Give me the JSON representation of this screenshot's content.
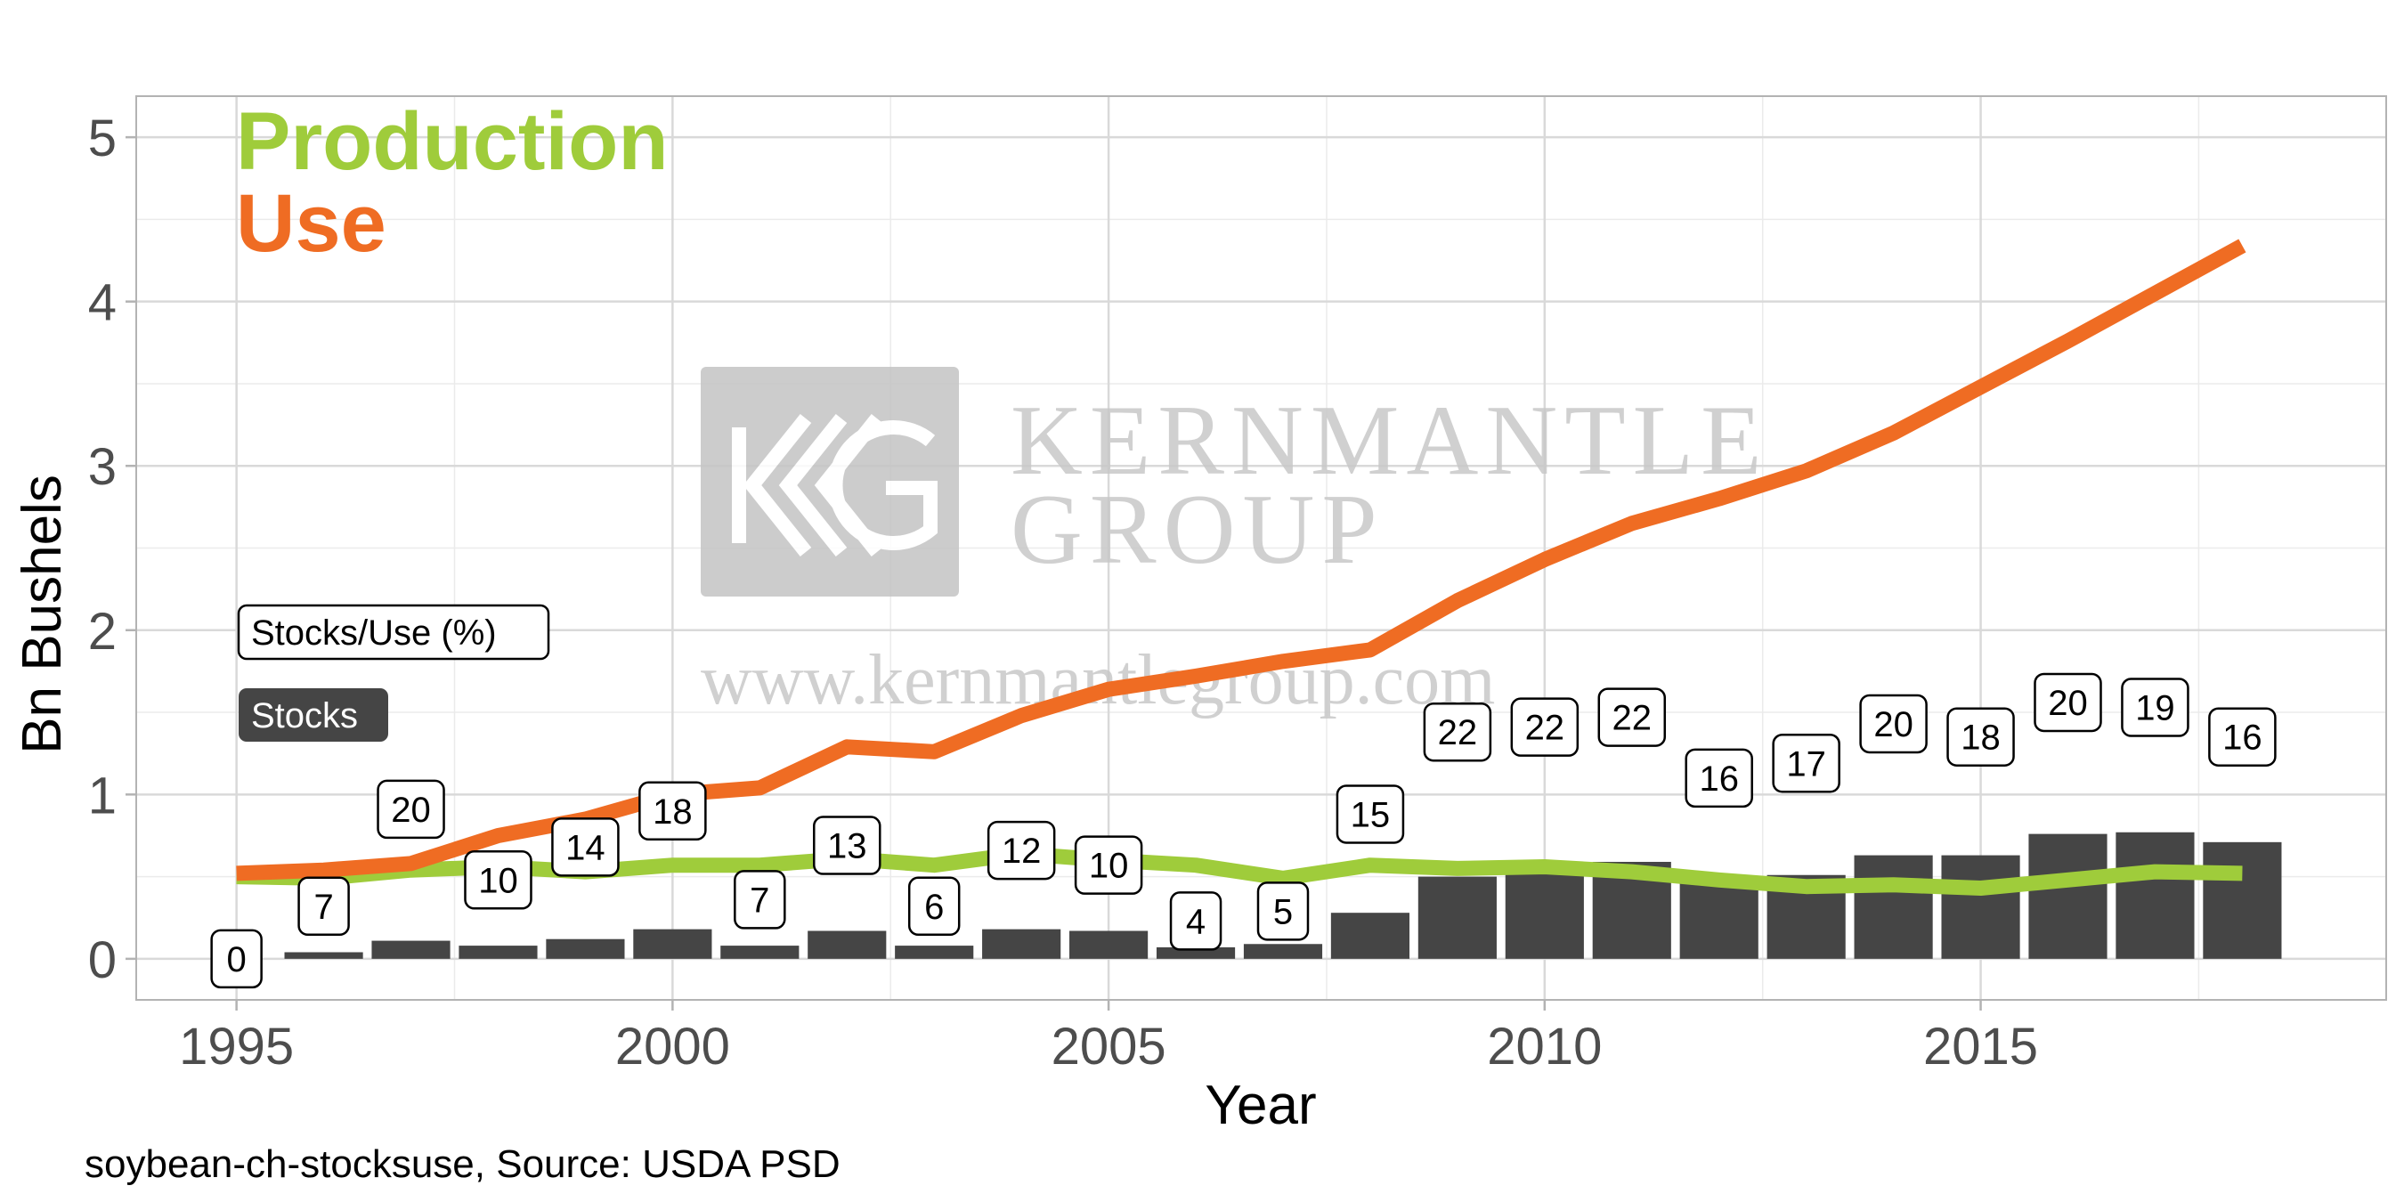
{
  "chart_data": {
    "type": "bar",
    "title": "",
    "xlabel": "Year",
    "ylabel": "Bn Bushels",
    "x": [
      1995,
      1996,
      1997,
      1998,
      1999,
      2000,
      2001,
      2002,
      2003,
      2004,
      2005,
      2006,
      2007,
      2008,
      2009,
      2010,
      2011,
      2012,
      2013,
      2014,
      2015,
      2016,
      2017,
      2018
    ],
    "xlim": [
      1993.85,
      2019.65
    ],
    "ylim": [
      -0.25,
      5.25
    ],
    "x_ticks": [
      1995,
      2000,
      2005,
      2010,
      2015
    ],
    "y_ticks": [
      0,
      1,
      2,
      3,
      4,
      5
    ],
    "grid": true,
    "legend_placement": "top-left",
    "series": [
      {
        "name": "Stocks",
        "type": "bar",
        "color": "#454545",
        "values": [
          0.0,
          0.04,
          0.11,
          0.08,
          0.12,
          0.18,
          0.08,
          0.17,
          0.08,
          0.18,
          0.17,
          0.07,
          0.09,
          0.28,
          0.5,
          0.53,
          0.59,
          0.46,
          0.51,
          0.63,
          0.63,
          0.76,
          0.77,
          0.71
        ]
      },
      {
        "name": "Production",
        "type": "line",
        "color": "#9fcc3b",
        "values": [
          0.5,
          0.49,
          0.54,
          0.56,
          0.53,
          0.57,
          0.57,
          0.61,
          0.57,
          0.64,
          0.6,
          0.57,
          0.49,
          0.57,
          0.55,
          0.56,
          0.53,
          0.48,
          0.44,
          0.45,
          0.43,
          0.48,
          0.53,
          0.52
        ]
      },
      {
        "name": "Use",
        "type": "line",
        "color": "#ef6c23",
        "values": [
          0.52,
          0.54,
          0.58,
          0.75,
          0.85,
          1.0,
          1.04,
          1.29,
          1.26,
          1.48,
          1.64,
          1.72,
          1.81,
          1.88,
          2.18,
          2.43,
          2.65,
          2.8,
          2.97,
          3.2,
          3.48,
          3.76,
          4.05,
          4.34
        ]
      }
    ],
    "stocks_use_pct": [
      0,
      7,
      20,
      10,
      14,
      18,
      7,
      13,
      6,
      12,
      10,
      4,
      5,
      15,
      22,
      22,
      22,
      16,
      17,
      20,
      18,
      20,
      19,
      16
    ],
    "legend": {
      "production": "Production",
      "use": "Use",
      "stocks_use_key": "Stocks/Use (%)",
      "stocks_key": "Stocks"
    },
    "caption": "soybean-ch-stocksuse, Source: USDA PSD"
  },
  "watermark": {
    "line1": "KERNMANTLE",
    "line2": "GROUP",
    "url": "www.kernmantlegroup.com"
  }
}
